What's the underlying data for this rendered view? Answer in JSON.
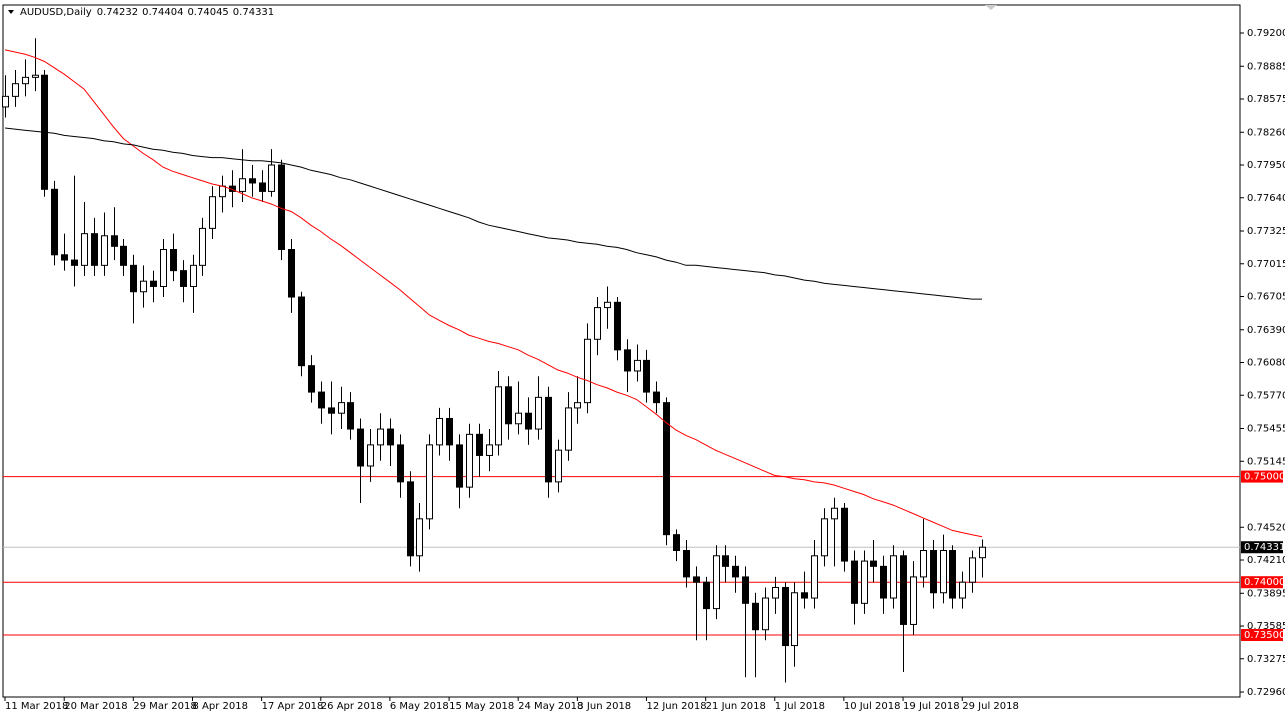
{
  "chart_data": {
    "type": "candlestick",
    "symbol": "AUDUSD,Daily",
    "ylim": [
      0.72913,
      0.79465
    ],
    "yticks": [
      {
        "value": 0.792,
        "label": "0.79200"
      },
      {
        "value": 0.78885,
        "label": "0.78885"
      },
      {
        "value": 0.78575,
        "label": "0.78575"
      },
      {
        "value": 0.7826,
        "label": "0.78260"
      },
      {
        "value": 0.7795,
        "label": "0.77950"
      },
      {
        "value": 0.7764,
        "label": "0.77640"
      },
      {
        "value": 0.77325,
        "label": "0.77325"
      },
      {
        "value": 0.77015,
        "label": "0.77015"
      },
      {
        "value": 0.76705,
        "label": "0.76705"
      },
      {
        "value": 0.7639,
        "label": "0.76390"
      },
      {
        "value": 0.7608,
        "label": "0.76080"
      },
      {
        "value": 0.7577,
        "label": "0.75770"
      },
      {
        "value": 0.75455,
        "label": "0.75455"
      },
      {
        "value": 0.75145,
        "label": "0.75145"
      },
      {
        "value": 0.7452,
        "label": "0.74520"
      },
      {
        "value": 0.7421,
        "label": "0.74210"
      },
      {
        "value": 0.73895,
        "label": "0.73895"
      },
      {
        "value": 0.73585,
        "label": "0.73585"
      },
      {
        "value": 0.73275,
        "label": "0.73275"
      },
      {
        "value": 0.7296,
        "label": "0.72960"
      }
    ],
    "hlines": [
      {
        "value": 0.75,
        "label": "0.75000"
      },
      {
        "value": 0.74,
        "label": "0.74000"
      },
      {
        "value": 0.735,
        "label": "0.73500"
      }
    ],
    "hline_color": "#ff0000",
    "up_color": "#ffffff",
    "down_color": "#000000",
    "categories": [
      "11 Mar 2018",
      null,
      null,
      null,
      null,
      null,
      "20 Mar 2018",
      null,
      null,
      null,
      null,
      null,
      null,
      "29 Mar 2018",
      null,
      null,
      null,
      null,
      null,
      "8 Apr 2018",
      null,
      null,
      null,
      null,
      null,
      null,
      "17 Apr 2018",
      null,
      null,
      null,
      null,
      null,
      "26 Apr 2018",
      null,
      null,
      null,
      null,
      null,
      null,
      "6 May 2018",
      null,
      null,
      null,
      null,
      null,
      "15 May 2018",
      null,
      null,
      null,
      null,
      null,
      null,
      "24 May 2018",
      null,
      null,
      null,
      null,
      null,
      "3 Jun 2018",
      null,
      null,
      null,
      null,
      null,
      null,
      "12 Jun 2018",
      null,
      null,
      null,
      null,
      null,
      "21 Jun 2018",
      null,
      null,
      null,
      null,
      null,
      null,
      "1 Jul 2018",
      null,
      null,
      null,
      null,
      null,
      null,
      "10 Jul 2018",
      null,
      null,
      null,
      null,
      null,
      "19 Jul 2018",
      null,
      null,
      null,
      null,
      null,
      "29 Jul 2018",
      null,
      null
    ],
    "candles": [
      [
        0.785,
        0.788,
        0.784,
        0.786
      ],
      [
        0.786,
        0.7885,
        0.785,
        0.7872
      ],
      [
        0.7872,
        0.7895,
        0.786,
        0.7878
      ],
      [
        0.7878,
        0.7915,
        0.7865,
        0.788
      ],
      [
        0.788,
        0.7885,
        0.7765,
        0.7772
      ],
      [
        0.7772,
        0.778,
        0.77,
        0.771
      ],
      [
        0.771,
        0.773,
        0.7695,
        0.7705
      ],
      [
        0.7705,
        0.7785,
        0.768,
        0.77
      ],
      [
        0.77,
        0.776,
        0.769,
        0.773
      ],
      [
        0.773,
        0.7745,
        0.769,
        0.77
      ],
      [
        0.77,
        0.775,
        0.769,
        0.7728
      ],
      [
        0.7728,
        0.7755,
        0.7705,
        0.7718
      ],
      [
        0.7718,
        0.7725,
        0.769,
        0.77
      ],
      [
        0.77,
        0.771,
        0.7645,
        0.7675
      ],
      [
        0.7675,
        0.77,
        0.766,
        0.7685
      ],
      [
        0.7685,
        0.7695,
        0.7665,
        0.768
      ],
      [
        0.768,
        0.7725,
        0.767,
        0.7715
      ],
      [
        0.7715,
        0.773,
        0.7685,
        0.7695
      ],
      [
        0.7695,
        0.7705,
        0.7665,
        0.768
      ],
      [
        0.768,
        0.771,
        0.7655,
        0.77
      ],
      [
        0.77,
        0.7745,
        0.769,
        0.7735
      ],
      [
        0.7735,
        0.7775,
        0.7725,
        0.7765
      ],
      [
        0.7765,
        0.7785,
        0.775,
        0.7775
      ],
      [
        0.7775,
        0.779,
        0.7755,
        0.777
      ],
      [
        0.777,
        0.781,
        0.776,
        0.7782
      ],
      [
        0.7782,
        0.7795,
        0.7765,
        0.7778
      ],
      [
        0.7778,
        0.779,
        0.776,
        0.777
      ],
      [
        0.777,
        0.781,
        0.7765,
        0.7795
      ],
      [
        0.7795,
        0.78,
        0.7705,
        0.7715
      ],
      [
        0.7715,
        0.7725,
        0.7655,
        0.767
      ],
      [
        0.767,
        0.7675,
        0.7595,
        0.7605
      ],
      [
        0.7605,
        0.7615,
        0.757,
        0.758
      ],
      [
        0.758,
        0.759,
        0.755,
        0.7565
      ],
      [
        0.7565,
        0.759,
        0.754,
        0.756
      ],
      [
        0.756,
        0.7585,
        0.7545,
        0.757
      ],
      [
        0.757,
        0.758,
        0.7535,
        0.7545
      ],
      [
        0.7545,
        0.7555,
        0.7475,
        0.751
      ],
      [
        0.751,
        0.7545,
        0.7495,
        0.753
      ],
      [
        0.753,
        0.756,
        0.7515,
        0.7545
      ],
      [
        0.7545,
        0.7555,
        0.751,
        0.753
      ],
      [
        0.753,
        0.754,
        0.748,
        0.7495
      ],
      [
        0.7495,
        0.7505,
        0.7415,
        0.7425
      ],
      [
        0.7425,
        0.7475,
        0.741,
        0.746
      ],
      [
        0.746,
        0.754,
        0.745,
        0.753
      ],
      [
        0.753,
        0.7565,
        0.752,
        0.7555
      ],
      [
        0.7555,
        0.7565,
        0.7515,
        0.753
      ],
      [
        0.753,
        0.754,
        0.747,
        0.749
      ],
      [
        0.749,
        0.755,
        0.748,
        0.754
      ],
      [
        0.754,
        0.755,
        0.75,
        0.752
      ],
      [
        0.752,
        0.7545,
        0.7505,
        0.753
      ],
      [
        0.753,
        0.76,
        0.752,
        0.7585
      ],
      [
        0.7585,
        0.7595,
        0.7535,
        0.755
      ],
      [
        0.755,
        0.759,
        0.754,
        0.756
      ],
      [
        0.756,
        0.7575,
        0.753,
        0.7545
      ],
      [
        0.7545,
        0.7595,
        0.7535,
        0.7575
      ],
      [
        0.7575,
        0.7585,
        0.748,
        0.7495
      ],
      [
        0.7495,
        0.7535,
        0.7485,
        0.7525
      ],
      [
        0.7525,
        0.758,
        0.7515,
        0.7565
      ],
      [
        0.7565,
        0.7595,
        0.755,
        0.757
      ],
      [
        0.757,
        0.7645,
        0.756,
        0.763
      ],
      [
        0.763,
        0.767,
        0.7615,
        0.766
      ],
      [
        0.766,
        0.768,
        0.764,
        0.7665
      ],
      [
        0.7665,
        0.767,
        0.761,
        0.762
      ],
      [
        0.762,
        0.763,
        0.758,
        0.76
      ],
      [
        0.76,
        0.7625,
        0.759,
        0.761
      ],
      [
        0.761,
        0.762,
        0.757,
        0.758
      ],
      [
        0.758,
        0.759,
        0.756,
        0.757
      ],
      [
        0.757,
        0.7575,
        0.7435,
        0.7445
      ],
      [
        0.7445,
        0.745,
        0.742,
        0.743
      ],
      [
        0.743,
        0.744,
        0.7395,
        0.7405
      ],
      [
        0.7405,
        0.7415,
        0.7345,
        0.74
      ],
      [
        0.74,
        0.7405,
        0.7345,
        0.7375
      ],
      [
        0.7375,
        0.7435,
        0.7365,
        0.7425
      ],
      [
        0.7425,
        0.7435,
        0.74,
        0.7415
      ],
      [
        0.7415,
        0.7425,
        0.739,
        0.7405
      ],
      [
        0.7405,
        0.7415,
        0.731,
        0.738
      ],
      [
        0.738,
        0.739,
        0.731,
        0.7355
      ],
      [
        0.7355,
        0.7395,
        0.7345,
        0.7385
      ],
      [
        0.7385,
        0.7405,
        0.737,
        0.7395
      ],
      [
        0.7395,
        0.74,
        0.7305,
        0.734
      ],
      [
        0.734,
        0.74,
        0.732,
        0.739
      ],
      [
        0.739,
        0.741,
        0.7375,
        0.7385
      ],
      [
        0.7385,
        0.744,
        0.7375,
        0.7425
      ],
      [
        0.7425,
        0.747,
        0.7415,
        0.746
      ],
      [
        0.746,
        0.748,
        0.7415,
        0.747
      ],
      [
        0.747,
        0.7475,
        0.741,
        0.742
      ],
      [
        0.742,
        0.743,
        0.736,
        0.738
      ],
      [
        0.738,
        0.743,
        0.737,
        0.742
      ],
      [
        0.742,
        0.744,
        0.74,
        0.7415
      ],
      [
        0.7415,
        0.7425,
        0.737,
        0.7385
      ],
      [
        0.7385,
        0.7435,
        0.7375,
        0.7425
      ],
      [
        0.7425,
        0.743,
        0.7315,
        0.736
      ],
      [
        0.736,
        0.742,
        0.735,
        0.7405
      ],
      [
        0.7405,
        0.746,
        0.7395,
        0.743
      ],
      [
        0.743,
        0.744,
        0.7375,
        0.739
      ],
      [
        0.739,
        0.7445,
        0.738,
        0.743
      ],
      [
        0.743,
        0.7435,
        0.7375,
        0.7385
      ],
      [
        0.7385,
        0.741,
        0.7375,
        0.74
      ],
      [
        0.74,
        0.743,
        0.739,
        0.7423
      ],
      [
        0.74232,
        0.74404,
        0.74045,
        0.74331
      ]
    ],
    "moving_averages": [
      {
        "color": "#ff0000",
        "values": [
          0.7904,
          0.7902,
          0.79,
          0.7897,
          0.7893,
          0.7887,
          0.7881,
          0.7874,
          0.7867,
          0.7855,
          0.7843,
          0.7831,
          0.782,
          0.7813,
          0.7806,
          0.78,
          0.7793,
          0.7789,
          0.7786,
          0.7783,
          0.778,
          0.7777,
          0.7775,
          0.7772,
          0.7768,
          0.7764,
          0.7761,
          0.7758,
          0.7754,
          0.7751,
          0.7745,
          0.7738,
          0.7732,
          0.7725,
          0.7719,
          0.7712,
          0.7705,
          0.7698,
          0.7691,
          0.7684,
          0.7677,
          0.7669,
          0.7661,
          0.7653,
          0.7648,
          0.7643,
          0.7639,
          0.7634,
          0.7631,
          0.7628,
          0.7626,
          0.7623,
          0.762,
          0.7615,
          0.7611,
          0.7606,
          0.7601,
          0.7598,
          0.7594,
          0.7591,
          0.7587,
          0.7584,
          0.758,
          0.7577,
          0.7573,
          0.7566,
          0.7559,
          0.7551,
          0.7544,
          0.7539,
          0.7535,
          0.753,
          0.7525,
          0.7521,
          0.7517,
          0.7513,
          0.7509,
          0.7505,
          0.7501,
          0.75,
          0.7498,
          0.7497,
          0.7495,
          0.7494,
          0.7492,
          0.7489,
          0.7486,
          0.7483,
          0.7479,
          0.7476,
          0.7473,
          0.7469,
          0.7465,
          0.7461,
          0.7457,
          0.7453,
          0.7449,
          0.7447,
          0.7445,
          0.7443
        ]
      },
      {
        "color": "#000000",
        "values": [
          0.783,
          0.7829,
          0.7828,
          0.7827,
          0.7826,
          0.7825,
          0.7823,
          0.7822,
          0.7821,
          0.782,
          0.7818,
          0.7817,
          0.7815,
          0.7814,
          0.7812,
          0.781,
          0.7809,
          0.7807,
          0.7806,
          0.7804,
          0.7803,
          0.7802,
          0.7802,
          0.7801,
          0.78,
          0.7799,
          0.7799,
          0.7798,
          0.7797,
          0.7795,
          0.7793,
          0.779,
          0.7788,
          0.7786,
          0.7783,
          0.7781,
          0.7778,
          0.7775,
          0.7772,
          0.7769,
          0.7766,
          0.7763,
          0.776,
          0.7757,
          0.7754,
          0.7751,
          0.7748,
          0.7745,
          0.7741,
          0.7738,
          0.7736,
          0.7734,
          0.7732,
          0.773,
          0.7728,
          0.7726,
          0.7725,
          0.7724,
          0.7722,
          0.7721,
          0.772,
          0.7718,
          0.7717,
          0.7715,
          0.7712,
          0.771,
          0.7708,
          0.7705,
          0.7703,
          0.77,
          0.77,
          0.7699,
          0.7698,
          0.7697,
          0.7696,
          0.7695,
          0.7694,
          0.7693,
          0.7691,
          0.769,
          0.7688,
          0.7686,
          0.7685,
          0.7683,
          0.7682,
          0.7681,
          0.768,
          0.7679,
          0.7678,
          0.7677,
          0.7676,
          0.7675,
          0.7674,
          0.7673,
          0.7672,
          0.7671,
          0.767,
          0.7669,
          0.7668,
          0.7668
        ]
      }
    ]
  }
}
